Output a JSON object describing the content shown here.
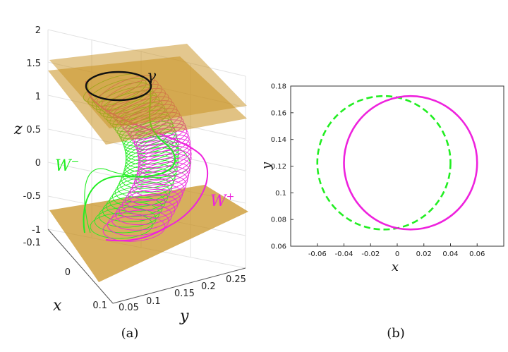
{
  "figure": {
    "left": {
      "caption": "(a)",
      "z_ticks": [
        "2",
        "1.5",
        "1",
        "0.5",
        "0",
        "-0.5",
        "-1"
      ],
      "x_ticks": [
        "-0.1",
        "0",
        "0.1"
      ],
      "y_ticks": [
        "0.05",
        "0.1",
        "0.15",
        "0.2",
        "0.25"
      ],
      "z_label": "z",
      "x_label": "x",
      "y_label": "y",
      "label_gamma": "γ",
      "label_wminus": "W",
      "label_wminus_sup": "−",
      "label_wplus": "W",
      "label_wplus_sup": "+",
      "colors": {
        "plane": "#c8901e",
        "wminus": "#22ee22",
        "wplus": "#ee22dd",
        "gamma": "#111111"
      }
    },
    "right": {
      "caption": "(b)",
      "x_label": "x",
      "y_label": "y",
      "x_ticks": [
        "-0.06",
        "-0.04",
        "-0.02",
        "0",
        "0.02",
        "0.04",
        "0.06"
      ],
      "y_ticks": [
        "0.18",
        "0.16",
        "0.14",
        "0.12",
        "0.1",
        "0.08",
        "0.06"
      ]
    }
  },
  "chart_data": {
    "type": "scatter",
    "xlim": [
      -0.08,
      0.08
    ],
    "ylim": [
      0.06,
      0.18
    ],
    "xlabel": "x",
    "ylabel": "y",
    "grid": false,
    "series": [
      {
        "style": "dashed",
        "color": "#22ee22",
        "center": [
          -0.01,
          0.1225
        ],
        "radius": 0.05
      },
      {
        "style": "solid",
        "color": "#ee22dd",
        "center": [
          0.01,
          0.1225
        ],
        "radius": 0.05
      }
    ]
  }
}
